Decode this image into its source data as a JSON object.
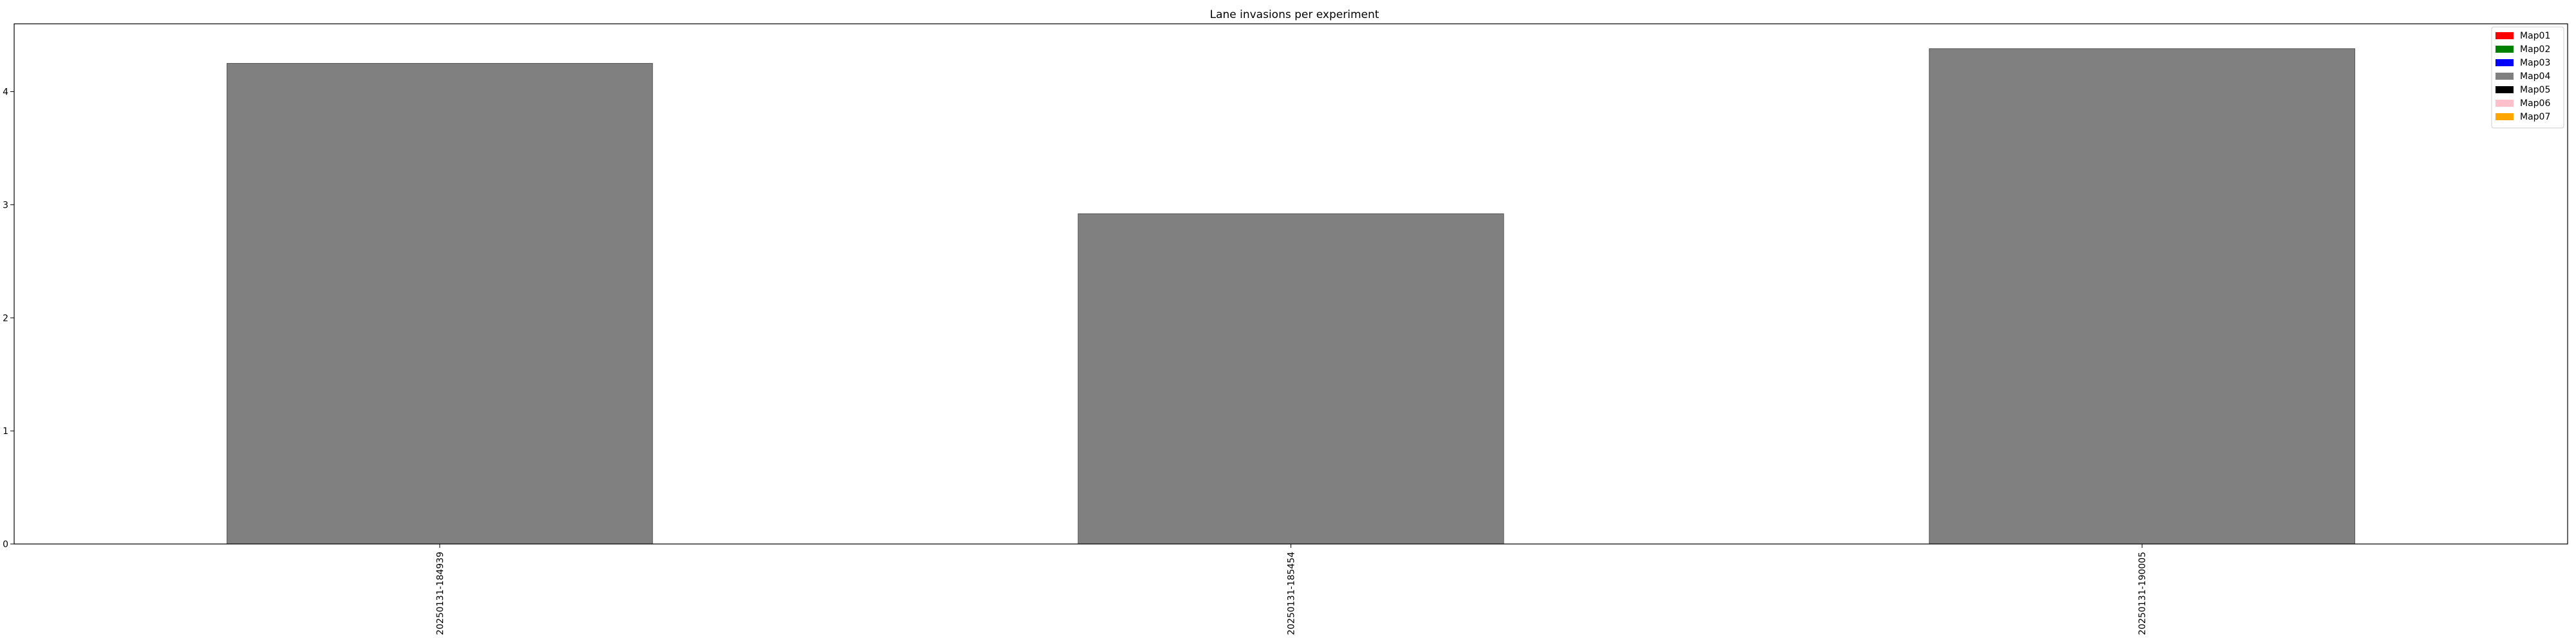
{
  "chart_data": {
    "type": "bar",
    "title": "Lane invasions per experiment",
    "xlabel": "",
    "ylabel": "",
    "categories": [
      "20250131-184939",
      "20250131-185454",
      "20250131-190005"
    ],
    "values": [
      4.25,
      2.92,
      4.38
    ],
    "bar_color": "#808080",
    "ylim": [
      0,
      4.6
    ],
    "yticks": [
      0,
      1,
      2,
      3,
      4
    ],
    "grid": false,
    "legend": {
      "placement": "top-right",
      "entries": [
        {
          "label": "Map01",
          "color": "#ff0000"
        },
        {
          "label": "Map02",
          "color": "#008000"
        },
        {
          "label": "Map03",
          "color": "#0000ff"
        },
        {
          "label": "Map04",
          "color": "#808080"
        },
        {
          "label": "Map05",
          "color": "#000000"
        },
        {
          "label": "Map06",
          "color": "#ffc0cb"
        },
        {
          "label": "Map07",
          "color": "#ffa500"
        }
      ]
    }
  }
}
